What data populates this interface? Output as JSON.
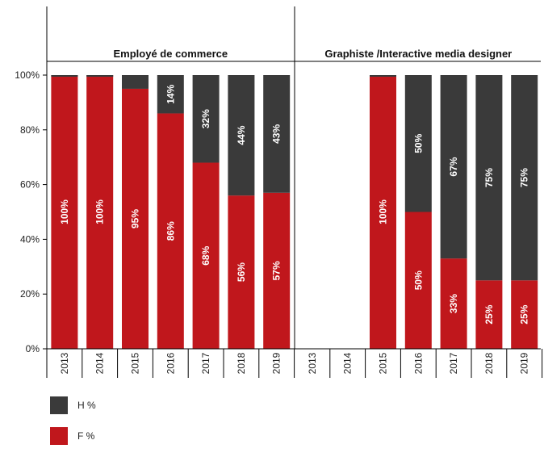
{
  "chart_data": {
    "type": "bar",
    "stacked": true,
    "yticks": [
      "0%",
      "20%",
      "40%",
      "60%",
      "80%",
      "100%"
    ],
    "ylim": [
      0,
      100
    ],
    "legend_position": "bottom-left",
    "panels": [
      {
        "title": "Employé de commerce",
        "categories": [
          "2013",
          "2014",
          "2015",
          "2016",
          "2017",
          "2018",
          "2019"
        ],
        "series": [
          {
            "name": "F %",
            "values": [
              100,
              100,
              95,
              86,
              68,
              56,
              57
            ],
            "labels": [
              "100%",
              "100%",
              "95%",
              "86%",
              "68%",
              "56%",
              "57%"
            ]
          },
          {
            "name": "H %",
            "values": [
              0,
              0,
              5,
              14,
              32,
              44,
              43
            ],
            "labels": [
              "",
              "",
              "",
              "14%",
              "32%",
              "44%",
              "43%"
            ]
          }
        ]
      },
      {
        "title": "Graphiste /Interactive media designer",
        "categories": [
          "2013",
          "2014",
          "2015",
          "2016",
          "2017",
          "2018",
          "2019"
        ],
        "series": [
          {
            "name": "F %",
            "values": [
              0,
              0,
              100,
              50,
              33,
              25,
              25
            ],
            "labels": [
              "",
              "",
              "100%",
              "50%",
              "33%",
              "25%",
              "25%"
            ]
          },
          {
            "name": "H %",
            "values": [
              0,
              0,
              0,
              50,
              67,
              75,
              75
            ],
            "labels": [
              "",
              "",
              "",
              "50%",
              "67%",
              "75%",
              "75%"
            ]
          }
        ]
      }
    ],
    "colors": {
      "F %": "#c0171c",
      "H %": "#3a3a3a"
    }
  },
  "legend": [
    {
      "label": "H %",
      "color": "#3a3a3a"
    },
    {
      "label": "F %",
      "color": "#c0171c"
    }
  ]
}
